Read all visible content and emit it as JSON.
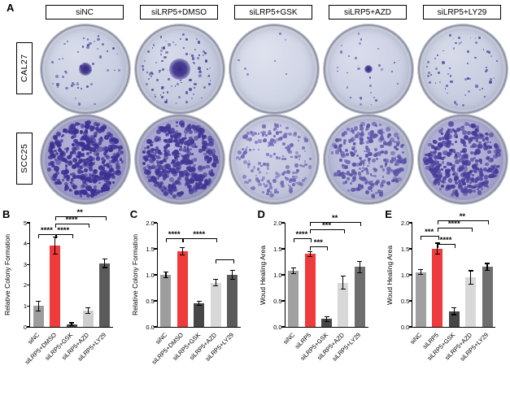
{
  "panels": {
    "A": "A",
    "B": "B",
    "C": "C",
    "D": "D",
    "E": "E"
  },
  "panelA": {
    "column_headers": [
      "siNC",
      "siLRP5+DMSO",
      "siLRP5+GSK",
      "siLRP5+AZD",
      "siLRP5+LY29"
    ],
    "row_labels": [
      "CAL27",
      "SCC25"
    ],
    "dishes": [
      {
        "row": "CAL27",
        "condition": "siNC",
        "density": 48,
        "dot_size": 2.4,
        "dot_color": "#584aa0",
        "bg_center": "#d8dcea",
        "bg_edge": "#c3c9de",
        "center_blob": 8
      },
      {
        "row": "CAL27",
        "condition": "siLRP5+DMSO",
        "density": 95,
        "dot_size": 2.5,
        "dot_color": "#544699",
        "bg_center": "#d6dae9",
        "bg_edge": "#c1c7dc",
        "center_blob": 13
      },
      {
        "row": "CAL27",
        "condition": "siLRP5+GSK",
        "density": 7,
        "dot_size": 2.0,
        "dot_color": "#6b5fae",
        "bg_center": "#dfe2ee",
        "bg_edge": "#cbd0e2",
        "center_blob": 0
      },
      {
        "row": "CAL27",
        "condition": "siLRP5+AZD",
        "density": 30,
        "dot_size": 2.2,
        "dot_color": "#5d50a4",
        "bg_center": "#dadded",
        "bg_edge": "#c6cbdf",
        "center_blob": 5
      },
      {
        "row": "CAL27",
        "condition": "siLRP5+LY29",
        "density": 60,
        "dot_size": 2.4,
        "dot_color": "#574a9f",
        "bg_center": "#d7dbe9",
        "bg_edge": "#c2c8dd",
        "center_blob": 0
      },
      {
        "row": "SCC25",
        "condition": "siNC",
        "density": 400,
        "dot_size": 4.6,
        "dot_color": "#3c3192",
        "bg_center": "#b3b1d9",
        "bg_edge": "#9896c4",
        "center_blob": 0
      },
      {
        "row": "SCC25",
        "condition": "siLRP5+DMSO",
        "density": 380,
        "dot_size": 4.6,
        "dot_color": "#413795",
        "bg_center": "#b6b4db",
        "bg_edge": "#9b99c6",
        "center_blob": 0
      },
      {
        "row": "SCC25",
        "condition": "siLRP5+GSK",
        "density": 190,
        "dot_size": 3.6,
        "dot_color": "#7168b4",
        "bg_center": "#d3d5e9",
        "bg_edge": "#bec2d9",
        "center_blob": 0
      },
      {
        "row": "SCC25",
        "condition": "siLRP5+AZD",
        "density": 260,
        "dot_size": 4.0,
        "dot_color": "#5c53a7",
        "bg_center": "#c6c8e2",
        "bg_edge": "#b0b3d2",
        "center_blob": 0
      },
      {
        "row": "SCC25",
        "condition": "siLRP5+LY29",
        "density": 340,
        "dot_size": 4.4,
        "dot_color": "#473d99",
        "bg_center": "#bcbade",
        "bg_edge": "#a3a1cb",
        "center_blob": 0
      }
    ]
  },
  "chart_data": [
    {
      "type": "bar",
      "panel": "B",
      "ylabel": "Relative Colony Formation",
      "ymax": 5,
      "yticks": [
        "0",
        "1",
        "2",
        "3",
        "4",
        "5"
      ],
      "categories": [
        "siNC",
        "siLRP5+DMSO",
        "siLRP5+GSK",
        "siLRP5+AZD",
        "siLRP5+LY29"
      ],
      "values": [
        1.0,
        3.9,
        0.12,
        0.78,
        3.05
      ],
      "errors": [
        0.22,
        0.38,
        0.05,
        0.12,
        0.18
      ],
      "colors": [
        "#9d9d9d",
        "#ee3b3b",
        "#474747",
        "#cfcfcf",
        "#5a5a5a"
      ],
      "brackets": [
        {
          "from": 0,
          "to": 1,
          "label": "****",
          "y": 4.45
        },
        {
          "from": 1,
          "to": 2,
          "label": "****",
          "y": 4.45
        },
        {
          "from": 1,
          "to": 3,
          "label": "****",
          "y": 4.95
        },
        {
          "from": 1,
          "to": 4,
          "label": "**",
          "y": 5.3
        }
      ]
    },
    {
      "type": "bar",
      "panel": "C",
      "ylabel": "Relative Colony Formation",
      "ymax": 2,
      "yticks": [
        "0.0",
        "0.5",
        "1.0",
        "1.5",
        "2.0"
      ],
      "categories": [
        "siNC",
        "siLRP5+DMSO",
        "siLRP5+GSK",
        "siLRP5+AZD",
        "siLRP5+LY29"
      ],
      "values": [
        1.0,
        1.45,
        0.45,
        0.85,
        1.0
      ],
      "errors": [
        0.05,
        0.06,
        0.03,
        0.05,
        0.08
      ],
      "colors": [
        "#9d9d9d",
        "#ee3b3b",
        "#474747",
        "#d8d8d8",
        "#5a5a5a"
      ],
      "brackets": [
        {
          "from": 0,
          "to": 1,
          "label": "****",
          "y": 1.7
        },
        {
          "from": 1,
          "to": 3,
          "label": "****",
          "y": 1.7
        },
        {
          "from": 3,
          "to": 4,
          "label": "",
          "y": 1.3
        }
      ]
    },
    {
      "type": "bar",
      "panel": "D",
      "ylabel": "Woud Healing Area",
      "ymax": 2,
      "yticks": [
        "0.0",
        "0.5",
        "1.0",
        "1.5",
        "2.0"
      ],
      "categories": [
        "siNC",
        "siLRP5",
        "siLRP5+GSK",
        "siLRP5+AZD",
        "siLRP5+LY29"
      ],
      "values": [
        1.08,
        1.4,
        0.15,
        0.85,
        1.15
      ],
      "errors": [
        0.05,
        0.04,
        0.04,
        0.12,
        0.1
      ],
      "colors": [
        "#a0a0a0",
        "#ee3b3b",
        "#474747",
        "#d8d8d8",
        "#6e6e6e"
      ],
      "brackets": [
        {
          "from": 0,
          "to": 1,
          "label": "****",
          "y": 1.7
        },
        {
          "from": 1,
          "to": 2,
          "label": "***",
          "y": 1.54
        },
        {
          "from": 1,
          "to": 3,
          "label": "***",
          "y": 1.87
        },
        {
          "from": 1,
          "to": 4,
          "label": "**",
          "y": 2.02
        }
      ]
    },
    {
      "type": "bar",
      "panel": "E",
      "ylabel": "Woud Healing Area",
      "ymax": 2,
      "yticks": [
        "0.0",
        "0.5",
        "1.0",
        "1.5",
        "2.0"
      ],
      "categories": [
        "siNC",
        "siLRP5",
        "siLRP5+GSK",
        "siLRP5+AZD",
        "siLRP5+LY29"
      ],
      "values": [
        1.05,
        1.5,
        0.3,
        0.95,
        1.15
      ],
      "errors": [
        0.04,
        0.1,
        0.06,
        0.12,
        0.06
      ],
      "colors": [
        "#a0a0a0",
        "#ee3b3b",
        "#474747",
        "#d8d8d8",
        "#6e6e6e"
      ],
      "brackets": [
        {
          "from": 0,
          "to": 1,
          "label": "***",
          "y": 1.75
        },
        {
          "from": 1,
          "to": 2,
          "label": "****",
          "y": 1.6
        },
        {
          "from": 1,
          "to": 3,
          "label": "****",
          "y": 1.9
        },
        {
          "from": 1,
          "to": 4,
          "label": "**",
          "y": 2.05
        }
      ]
    }
  ]
}
